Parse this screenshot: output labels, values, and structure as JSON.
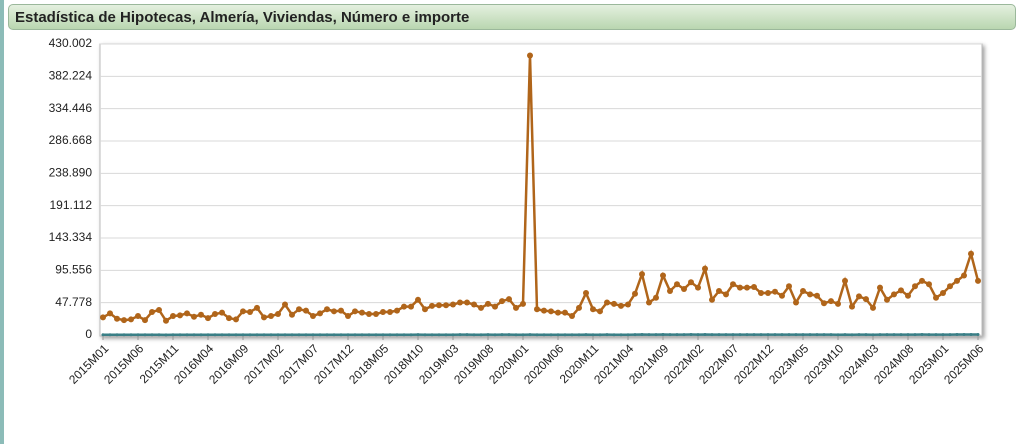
{
  "chart_data": {
    "type": "line",
    "title": "Estadística de Hipotecas, Almería, Viviendas, Número e importe",
    "categories": [
      "2015M01",
      null,
      null,
      null,
      null,
      "2015M06",
      null,
      null,
      null,
      null,
      "2015M11",
      null,
      null,
      null,
      null,
      "2016M04",
      null,
      null,
      null,
      null,
      "2016M09",
      null,
      null,
      null,
      null,
      "2017M02",
      null,
      null,
      null,
      null,
      "2017M07",
      null,
      null,
      null,
      null,
      "2017M12",
      null,
      null,
      null,
      null,
      "2018M05",
      null,
      null,
      null,
      null,
      "2018M10",
      null,
      null,
      null,
      null,
      "2019M03",
      null,
      null,
      null,
      null,
      "2019M08",
      null,
      null,
      null,
      null,
      "2020M01",
      null,
      null,
      null,
      null,
      "2020M06",
      null,
      null,
      null,
      null,
      "2020M11",
      null,
      null,
      null,
      null,
      "2021M04",
      null,
      null,
      null,
      null,
      "2021M09",
      null,
      null,
      null,
      null,
      "2022M02",
      null,
      null,
      null,
      null,
      "2022M07",
      null,
      null,
      null,
      null,
      "2022M12",
      null,
      null,
      null,
      null,
      "2023M05",
      null,
      null,
      null,
      null,
      "2023M10",
      null,
      null,
      null,
      null,
      "2024M03",
      null,
      null,
      null,
      null,
      "2024M08",
      null,
      null,
      null,
      null,
      "2025M01",
      null,
      null,
      null,
      null,
      "2025M06"
    ],
    "series": [
      {
        "color": "#b0651a",
        "values": [
          26000,
          32000,
          24000,
          22000,
          23000,
          28000,
          22000,
          34000,
          37000,
          21000,
          28000,
          29000,
          32000,
          27000,
          30000,
          25000,
          31000,
          33000,
          25000,
          23000,
          35000,
          34000,
          40000,
          26000,
          28000,
          31000,
          45000,
          30000,
          38000,
          36000,
          28000,
          32000,
          38000,
          35000,
          36000,
          28000,
          35000,
          33000,
          31000,
          31000,
          34000,
          34000,
          36000,
          42000,
          42000,
          52000,
          38000,
          43000,
          44000,
          44000,
          45000,
          48000,
          48000,
          45000,
          40000,
          46000,
          42000,
          50000,
          53000,
          40000,
          46000,
          413000,
          38000,
          36000,
          35000,
          33000,
          33000,
          28000,
          40000,
          62000,
          38000,
          35000,
          48000,
          46000,
          43000,
          45000,
          61000,
          90000,
          48000,
          55000,
          88000,
          65000,
          75000,
          68000,
          78000,
          70000,
          98000,
          52000,
          65000,
          60000,
          75000,
          70000,
          70000,
          71000,
          62000,
          62000,
          64000,
          58000,
          72000,
          48000,
          65000,
          60000,
          58000,
          47000,
          50000,
          46000,
          80000,
          42000,
          57000,
          53000,
          40000,
          70000,
          52000,
          60000,
          66000,
          58000,
          72000,
          80000,
          75000,
          55000,
          62000,
          72000,
          80000,
          88000,
          120000,
          80000
        ]
      },
      {
        "color": "#3a7f86",
        "values": [
          310,
          340,
          290,
          280,
          300,
          330,
          280,
          360,
          380,
          270,
          320,
          330,
          350,
          310,
          330,
          300,
          340,
          350,
          300,
          290,
          370,
          360,
          400,
          310,
          320,
          340,
          420,
          330,
          380,
          370,
          320,
          350,
          390,
          370,
          380,
          330,
          380,
          360,
          350,
          350,
          370,
          370,
          390,
          430,
          430,
          480,
          400,
          440,
          450,
          450,
          460,
          480,
          480,
          460,
          420,
          470,
          440,
          500,
          520,
          420,
          460,
          520,
          360,
          340,
          330,
          320,
          320,
          290,
          400,
          560,
          400,
          370,
          470,
          460,
          440,
          460,
          560,
          700,
          470,
          520,
          680,
          570,
          620,
          590,
          650,
          610,
          720,
          500,
          580,
          560,
          630,
          600,
          600,
          610,
          560,
          560,
          570,
          540,
          610,
          470,
          580,
          550,
          540,
          470,
          490,
          460,
          640,
          430,
          530,
          510,
          420,
          600,
          500,
          550,
          580,
          540,
          610,
          650,
          620,
          520,
          560,
          610,
          650,
          690,
          800,
          650
        ]
      }
    ],
    "ylim": [
      0,
      430002
    ],
    "yticks": [
      0,
      {
        "value": 47778,
        "label": "47.778"
      },
      {
        "value": 95556,
        "label": "95.556"
      },
      {
        "value": 143334,
        "label": "143.334"
      },
      {
        "value": 191112,
        "label": "191.112"
      },
      {
        "value": 238890,
        "label": "238.890"
      },
      {
        "value": 286668,
        "label": "286.668"
      },
      {
        "value": 334446,
        "label": "334.446"
      },
      {
        "value": 382224,
        "label": "382.224"
      },
      {
        "value": 430002,
        "label": "430.002"
      }
    ],
    "grid": true
  }
}
